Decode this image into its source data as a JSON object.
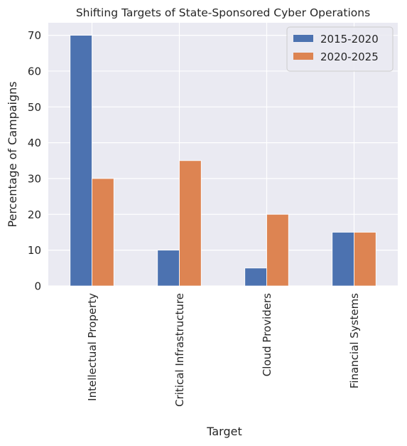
{
  "chart_data": {
    "type": "bar",
    "title": "Shifting Targets of State-Sponsored Cyber Operations",
    "xlabel": "Target",
    "ylabel": "Percentage of Campaigns",
    "categories": [
      "Intellectual Property",
      "Critical Infrastructure",
      "Cloud Providers",
      "Financial Systems"
    ],
    "series": [
      {
        "name": "2015-2020",
        "values": [
          70,
          10,
          5,
          15
        ],
        "color": "#4c72b0"
      },
      {
        "name": "2020-2025",
        "values": [
          30,
          35,
          20,
          15
        ],
        "color": "#dd8452"
      }
    ],
    "yticks": [
      0,
      10,
      20,
      30,
      40,
      50,
      60,
      70
    ],
    "ylim": [
      0,
      73.5
    ],
    "grid": true,
    "legend_position": "top-right",
    "background": "#eaeaf2"
  }
}
